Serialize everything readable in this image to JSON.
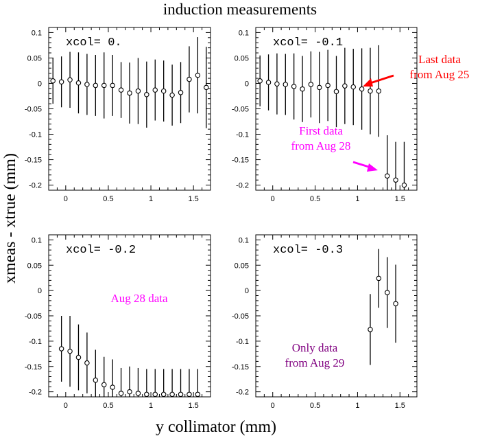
{
  "figure": {
    "title": "induction measurements",
    "xlabel": "y collimator (mm)",
    "ylabel": "xmeas - xtrue (mm)"
  },
  "colors": {
    "ink": "#000000",
    "red": "#ff0000",
    "magenta": "#ff00ff",
    "purple": "#800080"
  },
  "chart_data": [
    {
      "type": "scatter",
      "panel": "top-left",
      "label": "xcol= 0.",
      "xlim": [
        -0.2,
        1.7
      ],
      "ylim": [
        -0.21,
        0.11
      ],
      "xticks": [
        0,
        0.5,
        1,
        1.5
      ],
      "xtick_labels": [
        "0",
        "0.5",
        "1",
        "1.5"
      ],
      "yticks": [
        0.1,
        0.05,
        0,
        -0.05,
        -0.1,
        -0.15,
        -0.2
      ],
      "ytick_labels": [
        "0.1",
        "0.05",
        "0",
        "-0.05",
        "-0.1",
        "-0.15",
        "-0.2"
      ],
      "series": [
        {
          "x": [
            -0.15,
            -0.05,
            0.05,
            0.15,
            0.25,
            0.35,
            0.45,
            0.55,
            0.65,
            0.75,
            0.85,
            0.95,
            1.05,
            1.15,
            1.25,
            1.35,
            1.45,
            1.55,
            1.65
          ],
          "y": [
            0.005,
            0.003,
            0.007,
            0.001,
            -0.002,
            -0.004,
            -0.004,
            -0.004,
            -0.013,
            -0.019,
            -0.015,
            -0.022,
            -0.013,
            -0.015,
            -0.023,
            -0.018,
            0.008,
            0.016,
            -0.008
          ],
          "err": [
            0.045,
            0.05,
            0.055,
            0.06,
            0.06,
            0.06,
            0.065,
            0.06,
            0.055,
            0.06,
            0.065,
            0.065,
            0.06,
            0.06,
            0.06,
            0.06,
            0.065,
            0.075,
            0.08
          ]
        }
      ],
      "annotations": []
    },
    {
      "type": "scatter",
      "panel": "top-right",
      "label": "xcol= -0.1",
      "xlim": [
        -0.2,
        1.7
      ],
      "ylim": [
        -0.21,
        0.11
      ],
      "xticks": [
        0,
        0.5,
        1,
        1.5
      ],
      "xtick_labels": [
        "0",
        "0.5",
        "1",
        "1.5"
      ],
      "yticks": [
        0.1,
        0.05,
        0,
        -0.05,
        -0.1,
        -0.15,
        -0.2
      ],
      "ytick_labels": [
        "0.1",
        "0.05",
        "0",
        "-0.05",
        "-0.1",
        "-0.15",
        "-0.2"
      ],
      "series": [
        {
          "x": [
            -0.15,
            -0.05,
            0.05,
            0.15,
            0.25,
            0.35,
            0.45,
            0.55,
            0.65,
            0.75,
            0.85,
            0.95,
            1.05,
            1.15,
            1.25,
            1.35,
            1.45,
            1.55
          ],
          "y": [
            0.005,
            0.002,
            -0.001,
            -0.002,
            -0.006,
            -0.011,
            -0.002,
            -0.008,
            -0.004,
            -0.016,
            -0.005,
            -0.007,
            -0.011,
            -0.015,
            -0.015,
            -0.182,
            -0.19,
            -0.2
          ],
          "err": [
            0.05,
            0.055,
            0.06,
            0.06,
            0.065,
            0.065,
            0.065,
            0.07,
            0.07,
            0.07,
            0.075,
            0.075,
            0.08,
            0.085,
            0.09,
            0.08,
            0.075,
            0.085
          ]
        }
      ],
      "annotations": [
        {
          "lines": [
            "Last data",
            "from Aug 25"
          ],
          "color": "red"
        },
        {
          "lines": [
            "First data",
            "from Aug 28"
          ],
          "color": "magenta"
        }
      ]
    },
    {
      "type": "scatter",
      "panel": "bottom-left",
      "label": "xcol= -0.2",
      "xlim": [
        -0.2,
        1.7
      ],
      "ylim": [
        -0.21,
        0.11
      ],
      "xticks": [
        0,
        0.5,
        1,
        1.5
      ],
      "xtick_labels": [
        "0",
        "0.5",
        "1",
        "1.5"
      ],
      "yticks": [
        0.1,
        0.05,
        0,
        -0.05,
        -0.1,
        -0.15,
        -0.2
      ],
      "ytick_labels": [
        "0.1",
        "0.05",
        "0",
        "-0.05",
        "-0.1",
        "-0.15",
        "-0.2"
      ],
      "series": [
        {
          "x": [
            -0.05,
            0.05,
            0.15,
            0.25,
            0.35,
            0.45,
            0.55,
            0.65,
            0.75,
            0.85,
            0.95,
            1.05,
            1.15,
            1.25,
            1.35,
            1.45,
            1.55
          ],
          "y": [
            -0.115,
            -0.12,
            -0.132,
            -0.143,
            -0.177,
            -0.186,
            -0.191,
            -0.203,
            -0.2,
            -0.203,
            -0.205,
            -0.205,
            -0.205,
            -0.205,
            -0.205,
            -0.205,
            -0.205
          ],
          "err": [
            0.065,
            0.07,
            0.065,
            0.06,
            0.06,
            0.055,
            0.055,
            0.05,
            0.05,
            0.05,
            0.05,
            0.05,
            0.05,
            0.05,
            0.05,
            0.05,
            0.05
          ]
        }
      ],
      "annotations": [
        {
          "lines": [
            "Aug 28 data"
          ],
          "color": "magenta"
        }
      ]
    },
    {
      "type": "scatter",
      "panel": "bottom-right",
      "label": "xcol= -0.3",
      "xlim": [
        -0.2,
        1.7
      ],
      "ylim": [
        -0.21,
        0.11
      ],
      "xticks": [
        0,
        0.5,
        1,
        1.5
      ],
      "xtick_labels": [
        "0",
        "0.5",
        "1",
        "1.5"
      ],
      "yticks": [
        0.1,
        0.05,
        0,
        -0.05,
        -0.1,
        -0.15,
        -0.2
      ],
      "ytick_labels": [
        "0.1",
        "0.05",
        "0",
        "-0.05",
        "-0.1",
        "-0.15",
        "-0.2"
      ],
      "series": [
        {
          "x": [
            1.15,
            1.25,
            1.35,
            1.45
          ],
          "y": [
            -0.077,
            0.024,
            -0.004,
            -0.026
          ],
          "err": [
            0.07,
            0.058,
            0.07,
            0.077
          ]
        }
      ],
      "annotations": [
        {
          "lines": [
            "Only data",
            "from Aug 29"
          ],
          "color": "purple"
        }
      ]
    }
  ]
}
